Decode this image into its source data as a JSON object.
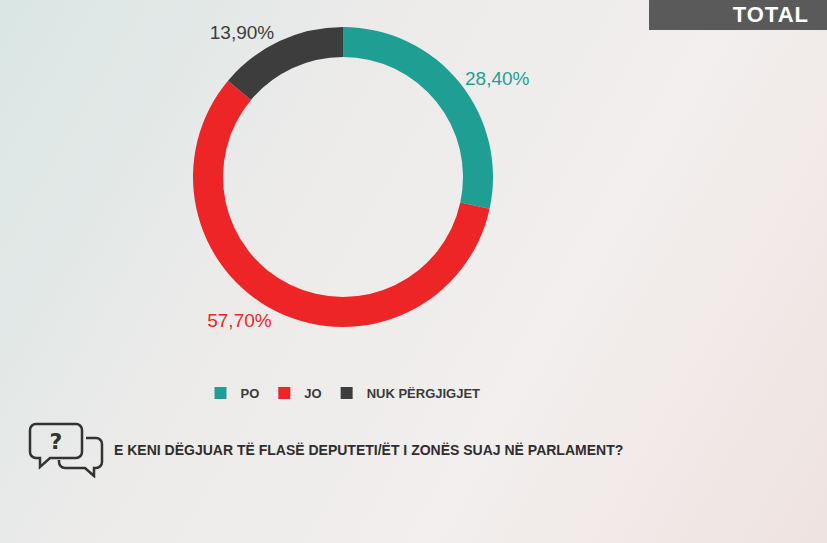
{
  "chart_data": {
    "type": "donut",
    "title": "E KENI DËGJUAR TË FLASË DEPUTETI/ËT I ZONËS SUAJ NË PARLAMENT?",
    "annotations": [
      "TOTAL"
    ],
    "categories": [
      "PO",
      "JO",
      "NUK PËRGJIGJET"
    ],
    "values": [
      28.4,
      57.7,
      13.9
    ],
    "value_labels": [
      "28,40%",
      "57,70%",
      "13,90%"
    ],
    "colors": [
      "#1f9e94",
      "#ee2526",
      "#3d3d3d"
    ],
    "data_labels": true,
    "legend": "bottom"
  }
}
